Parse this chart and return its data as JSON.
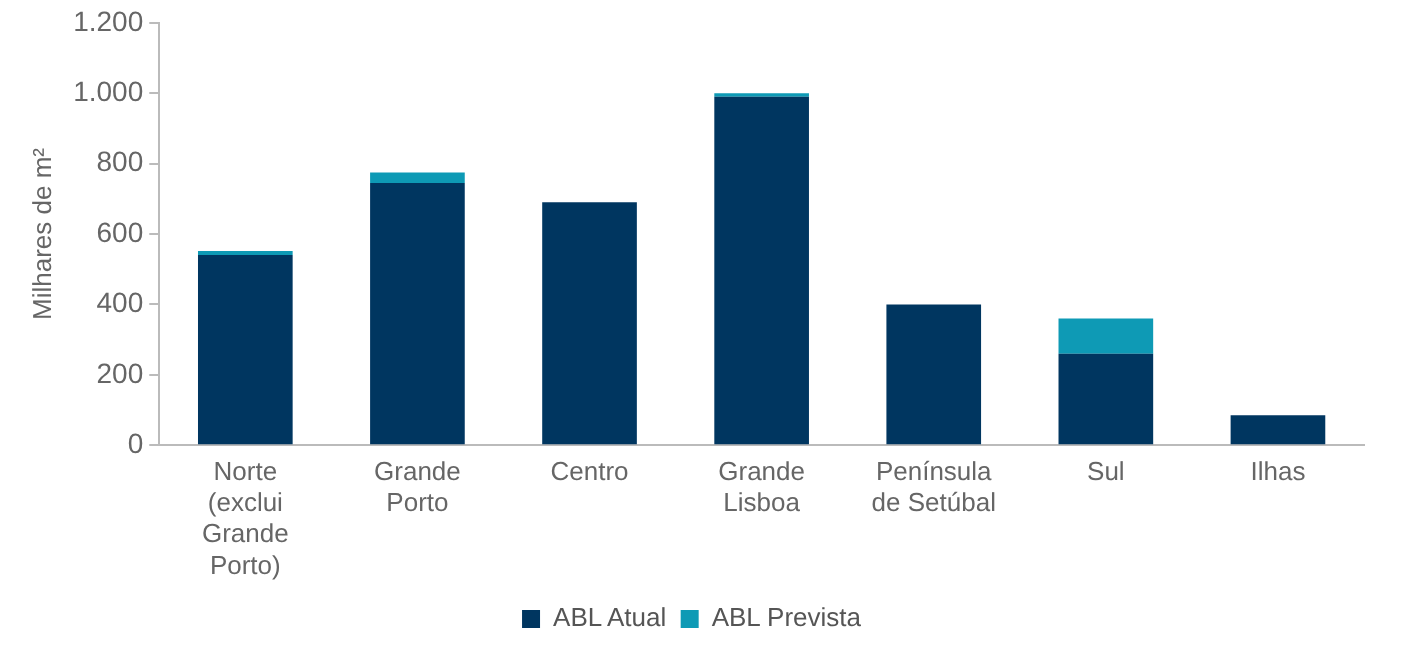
{
  "chart_data": {
    "type": "bar",
    "stacked": true,
    "ylabel": "Milhares de m²",
    "categories": [
      "Norte (exclui Grande Porto)",
      "Grande Porto",
      "Centro",
      "Grande Lisboa",
      "Península de Setúbal",
      "Sul",
      "Ilhas"
    ],
    "series": [
      {
        "name": "ABL Atual",
        "color": "#003660",
        "values": [
          540,
          745,
          690,
          990,
          400,
          260,
          85
        ]
      },
      {
        "name": "ABL Prevista",
        "color": "#0e9ab5",
        "values": [
          12,
          30,
          null,
          10,
          null,
          100,
          null
        ]
      }
    ],
    "ylim": [
      0,
      1200
    ],
    "yticks": [
      0,
      200,
      400,
      600,
      800,
      {
        "value": 1000,
        "label": "1.000"
      },
      {
        "value": 1200,
        "label": "1.200"
      }
    ],
    "grid": false,
    "legend": "bottom"
  }
}
